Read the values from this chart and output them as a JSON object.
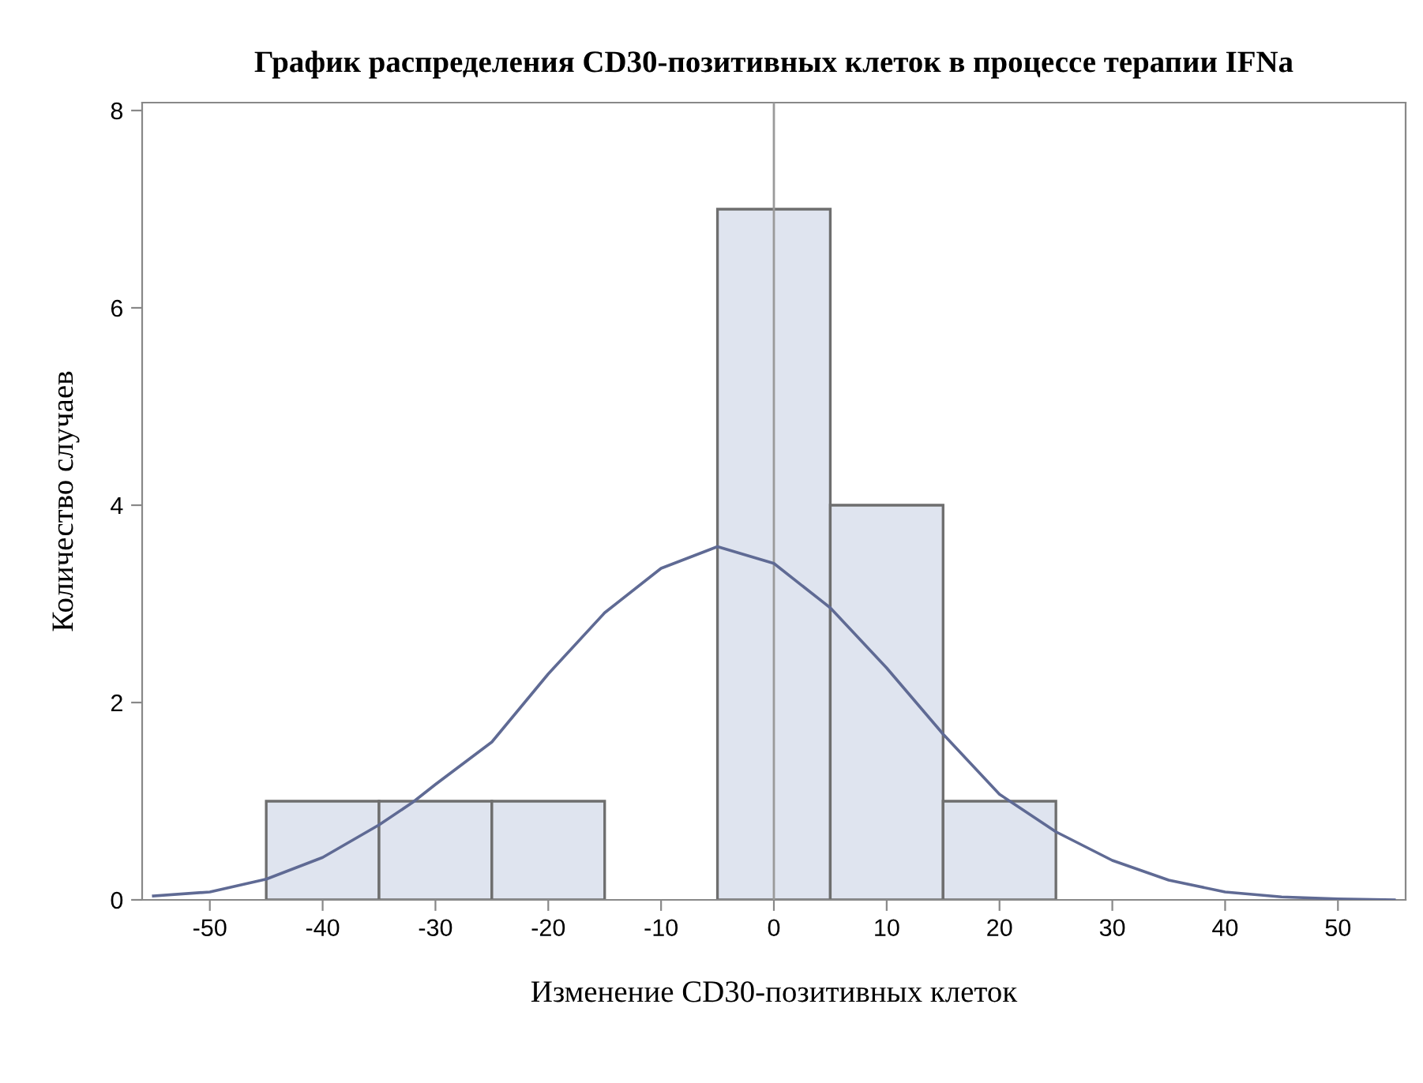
{
  "chart_data": {
    "type": "histogram",
    "title": "График распределения CD30-позитивных клеток в процессе терапии IFNa",
    "xlabel": "Изменение CD30-позитивных клеток",
    "ylabel": "Количество случаев",
    "bins": [
      -45,
      -35,
      -25,
      -15,
      -5,
      5,
      15,
      25
    ],
    "values": [
      1,
      1,
      1,
      0,
      7,
      4,
      1
    ],
    "color": "#dfe4ef",
    "series": [
      {
        "type": "line",
        "color": "#5f6a94",
        "x": [
          -55,
          -50,
          -45,
          -40,
          -35,
          -32,
          -30,
          -25,
          -20,
          -15,
          -10,
          -5,
          0,
          5,
          10,
          15,
          20,
          25,
          30,
          35,
          40,
          45,
          50,
          55
        ],
        "values": [
          0.04,
          0.08,
          0.21,
          0.43,
          0.76,
          0.99,
          1.17,
          1.6,
          2.29,
          2.91,
          3.36,
          3.58,
          3.41,
          2.96,
          2.35,
          1.68,
          1.07,
          0.69,
          0.4,
          0.2,
          0.08,
          0.03,
          0.01,
          0.0
        ]
      }
    ],
    "ref_lines": [
      {
        "axis": "x",
        "value": 0,
        "color": "#9a9a9a"
      }
    ],
    "xlim": [
      -56,
      56
    ],
    "ylim": [
      0,
      8.08
    ],
    "xticks": [
      -50,
      -40,
      -30,
      -20,
      -10,
      0,
      10,
      20,
      30,
      40,
      50
    ],
    "yticks": [
      0,
      2,
      4,
      6,
      8
    ],
    "grid": false
  }
}
